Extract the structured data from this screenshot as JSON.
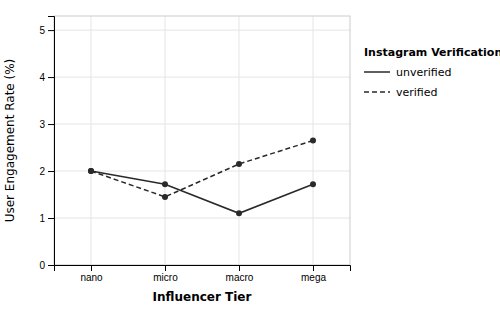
{
  "chart_data": {
    "type": "line",
    "categories": [
      "nano",
      "micro",
      "macro",
      "mega"
    ],
    "series": [
      {
        "name": "unverified",
        "color": "#2a2a2a",
        "line_style": "solid",
        "marker": "circle",
        "values": [
          2.0,
          1.72,
          1.1,
          1.72
        ]
      },
      {
        "name": "verified",
        "color": "#2a2a2a",
        "line_style": "dashed",
        "marker": "circle",
        "values": [
          2.0,
          1.45,
          2.15,
          2.65
        ]
      }
    ],
    "xlabel": "Influencer Tier",
    "ylabel": "User Engagement Rate (%)",
    "legend_title": "Instagram Verification",
    "legend": "right",
    "ylim": [
      0,
      5.3
    ],
    "yticks": [
      0,
      1,
      2,
      3,
      4,
      5
    ],
    "grid": true
  }
}
